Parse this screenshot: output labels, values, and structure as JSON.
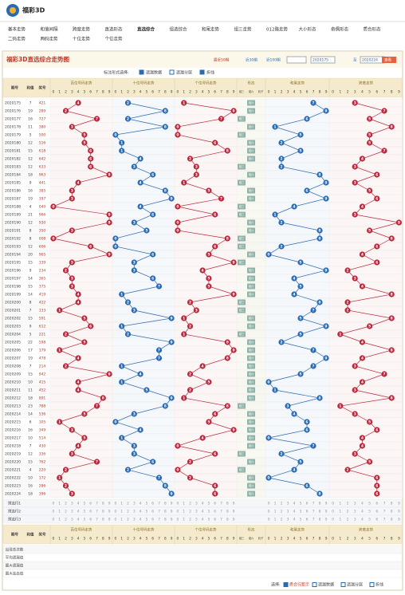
{
  "header": {
    "logo": "福彩3D",
    "nav": [
      "基本走势",
      "和值间隔",
      "跨度走势",
      "直选形态",
      "直选综合",
      "组选综合",
      "和尾走势",
      "组三走势",
      "012路走势",
      "大小形态",
      "奇偶形态",
      "质合形态",
      "二码走势",
      "两码走势",
      "十位走势",
      "个位走势"
    ],
    "active_nav": "直选综合",
    "title": "福彩3D直选综合走势图",
    "controls": [
      "最近50期",
      "近30期",
      "近100期",
      "2020175",
      "至",
      "2020224",
      "查看"
    ]
  },
  "options": {
    "label": "标注形式选择:",
    "items": [
      "遗漏数据",
      "遗漏分层",
      "折线"
    ]
  },
  "table": {
    "left_headers": [
      "期号",
      "和值",
      "奖号"
    ],
    "groups": [
      "百位号码走势",
      "十位号码走势",
      "个位号码走势",
      "形态",
      "和尾走势",
      "跨度走势"
    ],
    "digits": [
      0,
      1,
      2,
      3,
      4,
      5,
      6,
      7,
      8,
      9
    ],
    "forms": [
      "组三",
      "组六",
      "豹子"
    ],
    "rows": [
      {
        "issue": "2020175",
        "sum": 7,
        "number": "421",
        "bai": 4,
        "shi": 2,
        "ge": 1,
        "tail": 7,
        "span": 3,
        "form": "组六"
      },
      {
        "issue": "2020176",
        "sum": 19,
        "number": "289",
        "bai": 2,
        "shi": 8,
        "ge": 9,
        "tail": 9,
        "span": 7,
        "form": "组六"
      },
      {
        "issue": "2020177",
        "sum": 16,
        "number": "727",
        "bai": 7,
        "shi": 2,
        "ge": 7,
        "tail": 6,
        "span": 5,
        "form": "组三"
      },
      {
        "issue": "2020178",
        "sum": 11,
        "number": "380",
        "bai": 3,
        "shi": 8,
        "ge": 0,
        "tail": 1,
        "span": 8,
        "form": "组六"
      },
      {
        "issue": "2020179",
        "sum": 5,
        "number": "500",
        "bai": 5,
        "shi": 0,
        "ge": 0,
        "tail": 5,
        "span": 5,
        "form": "组三"
      },
      {
        "issue": "2020180",
        "sum": 12,
        "number": "516",
        "bai": 5,
        "shi": 1,
        "ge": 6,
        "tail": 2,
        "span": 5,
        "form": "组六"
      },
      {
        "issue": "2020181",
        "sum": 15,
        "number": "618",
        "bai": 6,
        "shi": 1,
        "ge": 8,
        "tail": 5,
        "span": 7,
        "form": "组六"
      },
      {
        "issue": "2020182",
        "sum": 12,
        "number": "642",
        "bai": 6,
        "shi": 4,
        "ge": 2,
        "tail": 2,
        "span": 4,
        "form": "组六"
      },
      {
        "issue": "2020183",
        "sum": 12,
        "number": "633",
        "bai": 6,
        "shi": 3,
        "ge": 3,
        "tail": 2,
        "span": 3,
        "form": "组三"
      },
      {
        "issue": "2020184",
        "sum": 18,
        "number": "963",
        "bai": 9,
        "shi": 6,
        "ge": 3,
        "tail": 8,
        "span": 6,
        "form": "组六"
      },
      {
        "issue": "2020185",
        "sum": 9,
        "number": "441",
        "bai": 4,
        "shi": 4,
        "ge": 1,
        "tail": 9,
        "span": 3,
        "form": "组三"
      },
      {
        "issue": "2020186",
        "sum": 16,
        "number": "385",
        "bai": 3,
        "shi": 8,
        "ge": 5,
        "tail": 6,
        "span": 5,
        "form": "组六"
      },
      {
        "issue": "2020187",
        "sum": 19,
        "number": "397",
        "bai": 3,
        "shi": 9,
        "ge": 7,
        "tail": 9,
        "span": 6,
        "form": "组六"
      },
      {
        "issue": "2020188",
        "sum": 4,
        "number": "040",
        "bai": 0,
        "shi": 4,
        "ge": 0,
        "tail": 4,
        "span": 4,
        "form": "组三"
      },
      {
        "issue": "2020189",
        "sum": 21,
        "number": "966",
        "bai": 9,
        "shi": 6,
        "ge": 6,
        "tail": 1,
        "span": 3,
        "form": "组三"
      },
      {
        "issue": "2020190",
        "sum": 12,
        "number": "930",
        "bai": 9,
        "shi": 3,
        "ge": 0,
        "tail": 2,
        "span": 9,
        "form": "组六"
      },
      {
        "issue": "2020191",
        "sum": 8,
        "number": "350",
        "bai": 3,
        "shi": 5,
        "ge": 0,
        "tail": 8,
        "span": 5,
        "form": "组六"
      },
      {
        "issue": "2020192",
        "sum": 8,
        "number": "008",
        "bai": 0,
        "shi": 0,
        "ge": 8,
        "tail": 8,
        "span": 8,
        "form": "组三"
      },
      {
        "issue": "2020193",
        "sum": 12,
        "number": "606",
        "bai": 6,
        "shi": 0,
        "ge": 6,
        "tail": 2,
        "span": 6,
        "form": "组三"
      },
      {
        "issue": "2020194",
        "sum": 20,
        "number": "965",
        "bai": 9,
        "shi": 6,
        "ge": 5,
        "tail": 0,
        "span": 4,
        "form": "组六"
      },
      {
        "issue": "2020195",
        "sum": 15,
        "number": "339",
        "bai": 3,
        "shi": 3,
        "ge": 9,
        "tail": 5,
        "span": 6,
        "form": "组三"
      },
      {
        "issue": "2020196",
        "sum": 9,
        "number": "234",
        "bai": 2,
        "shi": 3,
        "ge": 4,
        "tail": 9,
        "span": 2,
        "form": "组六"
      },
      {
        "issue": "2020197",
        "sum": 14,
        "number": "365",
        "bai": 3,
        "shi": 6,
        "ge": 5,
        "tail": 4,
        "span": 3,
        "form": "组六"
      },
      {
        "issue": "2020198",
        "sum": 15,
        "number": "375",
        "bai": 3,
        "shi": 7,
        "ge": 5,
        "tail": 5,
        "span": 4,
        "form": "组六"
      },
      {
        "issue": "2020199",
        "sum": 14,
        "number": "419",
        "bai": 4,
        "shi": 1,
        "ge": 9,
        "tail": 4,
        "span": 8,
        "form": "组六"
      },
      {
        "issue": "2020200",
        "sum": 8,
        "number": "422",
        "bai": 4,
        "shi": 2,
        "ge": 2,
        "tail": 8,
        "span": 2,
        "form": "组三"
      },
      {
        "issue": "2020201",
        "sum": 7,
        "number": "133",
        "bai": 1,
        "shi": 3,
        "ge": 3,
        "tail": 7,
        "span": 2,
        "form": "组三"
      },
      {
        "issue": "2020202",
        "sum": 15,
        "number": "591",
        "bai": 5,
        "shi": 9,
        "ge": 1,
        "tail": 5,
        "span": 8,
        "form": "组六"
      },
      {
        "issue": "2020203",
        "sum": 9,
        "number": "612",
        "bai": 6,
        "shi": 1,
        "ge": 2,
        "tail": 9,
        "span": 5,
        "form": "组六"
      },
      {
        "issue": "2020204",
        "sum": 5,
        "number": "221",
        "bai": 2,
        "shi": 2,
        "ge": 1,
        "tail": 5,
        "span": 1,
        "form": "组三"
      },
      {
        "issue": "2020205",
        "sum": 22,
        "number": "598",
        "bai": 5,
        "shi": 9,
        "ge": 8,
        "tail": 2,
        "span": 4,
        "form": "组六"
      },
      {
        "issue": "2020206",
        "sum": 17,
        "number": "179",
        "bai": 1,
        "shi": 7,
        "ge": 9,
        "tail": 7,
        "span": 8,
        "form": "组六"
      },
      {
        "issue": "2020207",
        "sum": 19,
        "number": "478",
        "bai": 4,
        "shi": 7,
        "ge": 8,
        "tail": 9,
        "span": 4,
        "form": "组六"
      },
      {
        "issue": "2020208",
        "sum": 7,
        "number": "214",
        "bai": 2,
        "shi": 1,
        "ge": 4,
        "tail": 7,
        "span": 3,
        "form": "组六"
      },
      {
        "issue": "2020209",
        "sum": 15,
        "number": "942",
        "bai": 9,
        "shi": 4,
        "ge": 2,
        "tail": 5,
        "span": 7,
        "form": "组六"
      },
      {
        "issue": "2020210",
        "sum": 10,
        "number": "415",
        "bai": 4,
        "shi": 1,
        "ge": 5,
        "tail": 0,
        "span": 4,
        "form": "组六"
      },
      {
        "issue": "2020211",
        "sum": 11,
        "number": "452",
        "bai": 4,
        "shi": 5,
        "ge": 2,
        "tail": 1,
        "span": 3,
        "form": "组六"
      },
      {
        "issue": "2020212",
        "sum": 18,
        "number": "891",
        "bai": 8,
        "shi": 9,
        "ge": 1,
        "tail": 8,
        "span": 8,
        "form": "组六"
      },
      {
        "issue": "2020213",
        "sum": 23,
        "number": "788",
        "bai": 7,
        "shi": 8,
        "ge": 8,
        "tail": 3,
        "span": 1,
        "form": "组三"
      },
      {
        "issue": "2020214",
        "sum": 14,
        "number": "536",
        "bai": 5,
        "shi": 3,
        "ge": 6,
        "tail": 4,
        "span": 3,
        "form": "组六"
      },
      {
        "issue": "2020215",
        "sum": 6,
        "number": "105",
        "bai": 1,
        "shi": 0,
        "ge": 5,
        "tail": 6,
        "span": 5,
        "form": "组六"
      },
      {
        "issue": "2020216",
        "sum": 16,
        "number": "349",
        "bai": 3,
        "shi": 4,
        "ge": 9,
        "tail": 6,
        "span": 6,
        "form": "组六"
      },
      {
        "issue": "2020217",
        "sum": 10,
        "number": "514",
        "bai": 5,
        "shi": 1,
        "ge": 4,
        "tail": 0,
        "span": 4,
        "form": "组六"
      },
      {
        "issue": "2020218",
        "sum": 7,
        "number": "430",
        "bai": 4,
        "shi": 3,
        "ge": 0,
        "tail": 7,
        "span": 4,
        "form": "组六"
      },
      {
        "issue": "2020219",
        "sum": 12,
        "number": "336",
        "bai": 3,
        "shi": 3,
        "ge": 6,
        "tail": 2,
        "span": 3,
        "form": "组三"
      },
      {
        "issue": "2020220",
        "sum": 15,
        "number": "762",
        "bai": 7,
        "shi": 6,
        "ge": 2,
        "tail": 5,
        "span": 5,
        "form": "组六"
      },
      {
        "issue": "2020221",
        "sum": 4,
        "number": "220",
        "bai": 2,
        "shi": 2,
        "ge": 0,
        "tail": 4,
        "span": 2,
        "form": "组三"
      },
      {
        "issue": "2020222",
        "sum": 10,
        "number": "172",
        "bai": 1,
        "shi": 7,
        "ge": 2,
        "tail": 0,
        "span": 6,
        "form": "组六"
      },
      {
        "issue": "2020223",
        "sum": 16,
        "number": "286",
        "bai": 2,
        "shi": 8,
        "ge": 6,
        "tail": 6,
        "span": 6,
        "form": "组六"
      },
      {
        "issue": "2020224",
        "sum": 18,
        "number": "396",
        "bai": 3,
        "shi": 9,
        "ge": 6,
        "tail": 8,
        "span": 6,
        "form": "组六"
      }
    ],
    "preset_rows": [
      "预选行1",
      "预选行2",
      "预选行3"
    ],
    "stat_rows": [
      "出现总次数",
      "平均遗漏值",
      "最大遗漏值",
      "最大连出值"
    ]
  },
  "footer": {
    "label": "选择:",
    "items": [
      "质合行距示",
      "遗漏数据",
      "遗漏分层",
      "折线"
    ]
  }
}
